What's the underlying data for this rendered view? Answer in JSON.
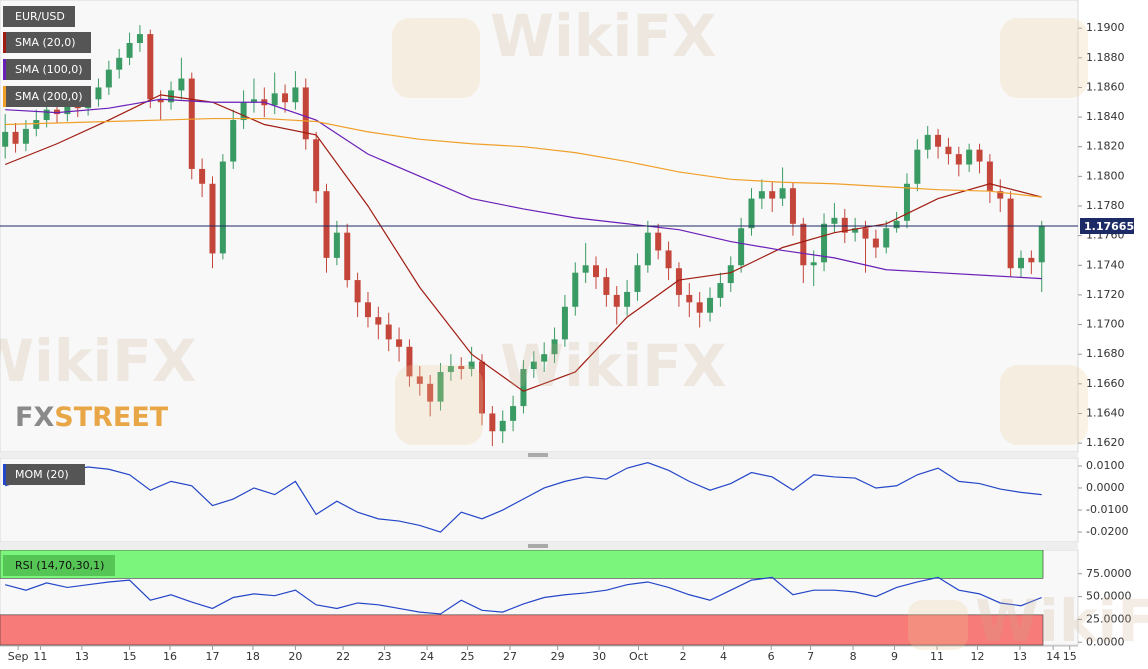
{
  "chart_data": [
    {
      "type": "candlestick",
      "title": "EUR/USD",
      "xlim": [
        -0.5,
        103.5
      ],
      "xticks": [
        {
          "value": 1.25,
          "label": "Sep"
        },
        {
          "value": 3.4,
          "label": "11"
        },
        {
          "value": 7.4,
          "label": "13"
        },
        {
          "value": 12,
          "label": "15"
        },
        {
          "value": 15.9,
          "label": "16"
        },
        {
          "value": 20,
          "label": "17"
        },
        {
          "value": 23.9,
          "label": "18"
        },
        {
          "value": 28,
          "label": "20"
        },
        {
          "value": 32.6,
          "label": "22"
        },
        {
          "value": 36.6,
          "label": "23"
        },
        {
          "value": 40.7,
          "label": "24"
        },
        {
          "value": 44.6,
          "label": "25"
        },
        {
          "value": 48.7,
          "label": "27"
        },
        {
          "value": 53.3,
          "label": "29"
        },
        {
          "value": 57.3,
          "label": "30"
        },
        {
          "value": 61.1,
          "label": "Oct"
        },
        {
          "value": 65.4,
          "label": "2"
        },
        {
          "value": 69.3,
          "label": "4"
        },
        {
          "value": 73.9,
          "label": "6"
        },
        {
          "value": 77.7,
          "label": "7"
        },
        {
          "value": 81.8,
          "label": "8"
        },
        {
          "value": 85.8,
          "label": "9"
        },
        {
          "value": 89.9,
          "label": "11"
        },
        {
          "value": 93.8,
          "label": "12"
        },
        {
          "value": 97.9,
          "label": "13"
        },
        {
          "value": 101.1,
          "label": "14"
        },
        {
          "value": 102.7,
          "label": "15"
        }
      ],
      "ylim": [
        1.1614,
        1.1919
      ],
      "yticks": [
        {
          "value": 1.162,
          "label": "1.1620"
        },
        {
          "value": 1.164,
          "label": "1.1640"
        },
        {
          "value": 1.166,
          "label": "1.1660"
        },
        {
          "value": 1.168,
          "label": "1.1680"
        },
        {
          "value": 1.17,
          "label": "1.1700"
        },
        {
          "value": 1.172,
          "label": "1.1720"
        },
        {
          "value": 1.174,
          "label": "1.1740"
        },
        {
          "value": 1.176,
          "label": "1.1760"
        },
        {
          "value": 1.178,
          "label": "1.1780"
        },
        {
          "value": 1.18,
          "label": "1.1800"
        },
        {
          "value": 1.182,
          "label": "1.1820"
        },
        {
          "value": 1.184,
          "label": "1.1840"
        },
        {
          "value": 1.186,
          "label": "1.1860"
        },
        {
          "value": 1.188,
          "label": "1.1880"
        },
        {
          "value": 1.19,
          "label": "1.1900"
        }
      ],
      "up_color": "#3a9a63",
      "down_color": "#c4453a",
      "open": [
        1.182,
        1.183,
        1.1822,
        1.1832,
        1.1838,
        1.1845,
        1.1842,
        1.1848,
        1.1846,
        1.1852,
        1.186,
        1.1872,
        1.188,
        1.189,
        1.1896,
        1.1852,
        1.185,
        1.1858,
        1.1866,
        1.1805,
        1.1795,
        1.1748,
        1.181,
        1.1838,
        1.185,
        1.1852,
        1.1848,
        1.1856,
        1.185,
        1.186,
        1.1825,
        1.179,
        1.1745,
        1.1762,
        1.173,
        1.1715,
        1.1705,
        1.17,
        1.169,
        1.1685,
        1.1665,
        1.166,
        1.1648,
        1.1668,
        1.1672,
        1.167,
        1.1675,
        1.164,
        1.1628,
        1.1635,
        1.1645,
        1.167,
        1.1675,
        1.168,
        1.169,
        1.1712,
        1.1735,
        1.174,
        1.1732,
        1.172,
        1.1712,
        1.1722,
        1.174,
        1.1762,
        1.175,
        1.1738,
        1.172,
        1.1715,
        1.1708,
        1.1718,
        1.1728,
        1.174,
        1.1765,
        1.1785,
        1.179,
        1.1785,
        1.1792,
        1.1768,
        1.174,
        1.1742,
        1.1768,
        1.1772,
        1.1762,
        1.1765,
        1.1758,
        1.1752,
        1.1765,
        1.177,
        1.1795,
        1.1818,
        1.1828,
        1.182,
        1.1815,
        1.1808,
        1.1818,
        1.181,
        1.179,
        1.1785,
        1.1738,
        1.1745,
        1.1742
      ],
      "high": [
        1.1842,
        1.1836,
        1.1838,
        1.1845,
        1.185,
        1.1851,
        1.1853,
        1.1854,
        1.1858,
        1.1866,
        1.1878,
        1.1886,
        1.1897,
        1.1902,
        1.1899,
        1.1858,
        1.1864,
        1.188,
        1.187,
        1.1812,
        1.18,
        1.1815,
        1.1845,
        1.1858,
        1.1866,
        1.186,
        1.187,
        1.1862,
        1.1871,
        1.1866,
        1.183,
        1.1795,
        1.177,
        1.1768,
        1.1735,
        1.1722,
        1.1712,
        1.1708,
        1.1698,
        1.169,
        1.1672,
        1.1666,
        1.1674,
        1.168,
        1.1678,
        1.1685,
        1.168,
        1.1645,
        1.1642,
        1.1652,
        1.1676,
        1.1682,
        1.1688,
        1.1698,
        1.172,
        1.1742,
        1.1755,
        1.1746,
        1.1738,
        1.1726,
        1.173,
        1.1748,
        1.177,
        1.1768,
        1.1756,
        1.1742,
        1.1728,
        1.1722,
        1.1725,
        1.1735,
        1.1746,
        1.1772,
        1.1792,
        1.1798,
        1.1796,
        1.1806,
        1.1796,
        1.1772,
        1.175,
        1.1775,
        1.1782,
        1.1778,
        1.1772,
        1.177,
        1.1764,
        1.177,
        1.1776,
        1.1802,
        1.1825,
        1.1834,
        1.1832,
        1.1826,
        1.182,
        1.1822,
        1.1822,
        1.1815,
        1.1798,
        1.179,
        1.175,
        1.175,
        1.177
      ],
      "low": [
        1.1812,
        1.1816,
        1.1817,
        1.1827,
        1.1833,
        1.1836,
        1.1837,
        1.184,
        1.1841,
        1.1847,
        1.1855,
        1.1866,
        1.1875,
        1.1884,
        1.1846,
        1.1838,
        1.1845,
        1.1852,
        1.1798,
        1.1786,
        1.1738,
        1.1744,
        1.1805,
        1.1832,
        1.1843,
        1.184,
        1.1842,
        1.1843,
        1.1845,
        1.1818,
        1.1782,
        1.1735,
        1.174,
        1.1725,
        1.1705,
        1.1698,
        1.169,
        1.1682,
        1.1675,
        1.1658,
        1.1652,
        1.1638,
        1.1642,
        1.1662,
        1.1663,
        1.1665,
        1.1632,
        1.1618,
        1.162,
        1.1628,
        1.164,
        1.1664,
        1.1668,
        1.1674,
        1.1685,
        1.1706,
        1.1728,
        1.1724,
        1.1712,
        1.17,
        1.1706,
        1.1716,
        1.1735,
        1.1744,
        1.173,
        1.1712,
        1.1705,
        1.1698,
        1.1702,
        1.1712,
        1.1722,
        1.1735,
        1.176,
        1.1778,
        1.1776,
        1.178,
        1.176,
        1.1728,
        1.1726,
        1.1736,
        1.1762,
        1.1755,
        1.1756,
        1.1735,
        1.1745,
        1.1748,
        1.1762,
        1.1765,
        1.179,
        1.1812,
        1.1812,
        1.1808,
        1.18,
        1.1803,
        1.1802,
        1.1782,
        1.1776,
        1.1732,
        1.1732,
        1.1734,
        1.1722
      ],
      "close": [
        1.183,
        1.1822,
        1.1832,
        1.1838,
        1.1845,
        1.1842,
        1.1848,
        1.1846,
        1.1852,
        1.186,
        1.1872,
        1.188,
        1.189,
        1.1896,
        1.1852,
        1.185,
        1.1858,
        1.1866,
        1.1805,
        1.1795,
        1.1748,
        1.181,
        1.1838,
        1.185,
        1.1852,
        1.1848,
        1.1856,
        1.185,
        1.186,
        1.1825,
        1.179,
        1.1745,
        1.1762,
        1.173,
        1.1715,
        1.1705,
        1.17,
        1.169,
        1.1685,
        1.1665,
        1.166,
        1.1648,
        1.1668,
        1.1672,
        1.167,
        1.1675,
        1.164,
        1.1628,
        1.1635,
        1.1645,
        1.167,
        1.1675,
        1.168,
        1.169,
        1.1712,
        1.1735,
        1.174,
        1.1732,
        1.172,
        1.1712,
        1.1722,
        1.174,
        1.1762,
        1.175,
        1.1738,
        1.172,
        1.1715,
        1.1708,
        1.1718,
        1.1728,
        1.174,
        1.1765,
        1.1785,
        1.179,
        1.1785,
        1.1792,
        1.1768,
        1.174,
        1.1742,
        1.1768,
        1.1772,
        1.1762,
        1.1765,
        1.1758,
        1.1752,
        1.1765,
        1.177,
        1.1795,
        1.1818,
        1.1828,
        1.182,
        1.1815,
        1.1808,
        1.1818,
        1.181,
        1.179,
        1.1785,
        1.1738,
        1.1745,
        1.1742,
        1.17665
      ],
      "last_price": 1.17665,
      "last_price_color": "#1c2a66",
      "series": [
        {
          "name": "SMA (20,0)",
          "color": "#a01c12",
          "x": [
            0,
            5,
            10,
            15,
            20,
            25,
            30,
            35,
            40,
            45,
            50,
            55,
            60,
            65,
            70,
            75,
            80,
            85,
            90,
            95,
            100
          ],
          "values": [
            1.1808,
            1.1822,
            1.1838,
            1.1855,
            1.185,
            1.1835,
            1.1828,
            1.178,
            1.1725,
            1.168,
            1.1655,
            1.1668,
            1.1705,
            1.173,
            1.1735,
            1.1752,
            1.1762,
            1.1768,
            1.1785,
            1.1795,
            1.1786
          ]
        },
        {
          "name": "SMA (100,0)",
          "color": "#6a1fb8",
          "x": [
            0,
            5,
            10,
            15,
            20,
            25,
            30,
            35,
            40,
            45,
            50,
            55,
            60,
            65,
            70,
            75,
            80,
            85,
            90,
            95,
            100
          ],
          "values": [
            1.1845,
            1.1843,
            1.1846,
            1.1852,
            1.185,
            1.185,
            1.1838,
            1.1815,
            1.18,
            1.1785,
            1.1778,
            1.1772,
            1.1768,
            1.1764,
            1.1756,
            1.175,
            1.1745,
            1.1737,
            1.1735,
            1.1733,
            1.1731
          ]
        },
        {
          "name": "SMA (200,0)",
          "color": "#f0a02a",
          "x": [
            0,
            5,
            10,
            15,
            20,
            25,
            30,
            35,
            40,
            45,
            50,
            55,
            60,
            65,
            70,
            75,
            80,
            85,
            90,
            95,
            100
          ],
          "values": [
            1.1835,
            1.1836,
            1.1837,
            1.1838,
            1.1839,
            1.1839,
            1.1837,
            1.183,
            1.1825,
            1.1822,
            1.182,
            1.1816,
            1.181,
            1.1803,
            1.1798,
            1.1796,
            1.1795,
            1.1793,
            1.1791,
            1.179,
            1.1786
          ]
        }
      ],
      "watermark": "WikiFX",
      "logo_fx": "FX",
      "logo_street": "STREET"
    },
    {
      "type": "line",
      "title": "MOM (20)",
      "ylim": [
        -0.0245,
        0.0136
      ],
      "yticks": [
        {
          "value": -0.02,
          "label": "-0.0200"
        },
        {
          "value": -0.01,
          "label": "-0.0100"
        },
        {
          "value": 0,
          "label": "0.0000"
        },
        {
          "value": 0.01,
          "label": "0.0100"
        }
      ],
      "series": [
        {
          "color": "#2446c8",
          "x": [
            0,
            2,
            4,
            6,
            8,
            10,
            12,
            14,
            16,
            18,
            20,
            22,
            24,
            26,
            28,
            30,
            32,
            34,
            36,
            38,
            40,
            42,
            44,
            46,
            48,
            50,
            52,
            54,
            56,
            58,
            60,
            62,
            64,
            66,
            68,
            70,
            72,
            74,
            76,
            78,
            80,
            82,
            84,
            86,
            88,
            90,
            92,
            94,
            96,
            98,
            100
          ],
          "values": [
            0.001,
            0.004,
            0.006,
            0.008,
            0.0095,
            0.0085,
            0.006,
            -0.001,
            0.003,
            0.001,
            -0.008,
            -0.005,
            0.0,
            -0.003,
            0.003,
            -0.012,
            -0.006,
            -0.011,
            -0.014,
            -0.015,
            -0.017,
            -0.02,
            -0.011,
            -0.014,
            -0.01,
            -0.005,
            0.0,
            0.003,
            0.005,
            0.004,
            0.009,
            0.0115,
            0.008,
            0.003,
            -0.001,
            0.002,
            0.007,
            0.005,
            -0.001,
            0.006,
            0.005,
            0.0045,
            0.0,
            0.001,
            0.006,
            0.009,
            0.003,
            0.002,
            -0.0005,
            -0.002,
            -0.003
          ]
        }
      ]
    },
    {
      "type": "line",
      "title": "RSI (14,70,30,1)",
      "ylim": [
        -3,
        101
      ],
      "overbought": 70,
      "oversold": 30,
      "overbought_color": "#7cf57c",
      "oversold_color": "#f77b78",
      "yticks": [
        {
          "value": 0,
          "label": "0.0000"
        },
        {
          "value": 25,
          "label": "25.0000"
        },
        {
          "value": 50,
          "label": "50.0000"
        },
        {
          "value": 75,
          "label": "75.0000"
        }
      ],
      "series": [
        {
          "color": "#2446c8",
          "x": [
            0,
            2,
            4,
            6,
            8,
            10,
            12,
            14,
            16,
            18,
            20,
            22,
            24,
            26,
            28,
            30,
            32,
            34,
            36,
            38,
            40,
            42,
            44,
            46,
            48,
            50,
            52,
            54,
            56,
            58,
            60,
            62,
            64,
            66,
            68,
            70,
            72,
            74,
            76,
            78,
            80,
            82,
            84,
            86,
            88,
            90,
            92,
            94,
            96,
            98,
            100
          ],
          "values": [
            63,
            57,
            65,
            60,
            63,
            66,
            68,
            46,
            52,
            44,
            37,
            49,
            53,
            51,
            57,
            41,
            37,
            43,
            41,
            37,
            33,
            31,
            46,
            35,
            33,
            42,
            49,
            52,
            54,
            57,
            63,
            66,
            60,
            52,
            46,
            57,
            68,
            71,
            52,
            57,
            57,
            55,
            50,
            60,
            66,
            71,
            57,
            53,
            43,
            40,
            49
          ]
        }
      ]
    }
  ]
}
